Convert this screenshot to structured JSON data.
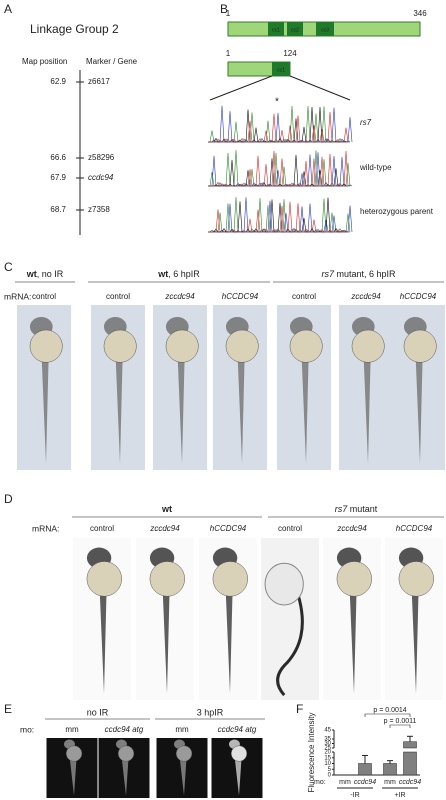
{
  "panel_a": {
    "letter": "A",
    "title": "Linkage Group 2",
    "col_headers": [
      "Map position",
      "Marker / Gene"
    ],
    "rows": [
      {
        "position": "62.9",
        "marker": "z6617",
        "color": "#d42a2a"
      },
      {
        "position": "66.6",
        "marker": "z58296",
        "color": "#d42a2a"
      },
      {
        "position": "67.9",
        "marker": "ccdc94",
        "color": "#3c4fc4",
        "italic": true
      },
      {
        "position": "68.7",
        "marker": "z7358",
        "color": "#d42a2a"
      }
    ]
  },
  "panel_b": {
    "letter": "B",
    "full_start": "1",
    "full_end": "346",
    "domains": [
      "cc1",
      "cc2",
      "cc3"
    ],
    "trunc_start": "1",
    "trunc_end": "124",
    "trunc_domain": "cc1",
    "asterisk": "*",
    "traces": [
      {
        "label": "rs7",
        "italic": true
      },
      {
        "label": "wild-type"
      },
      {
        "label": "heterozygous parent"
      }
    ]
  },
  "panel_c": {
    "letter": "C",
    "groups": [
      {
        "lead": "wt",
        "rest": ", no IR"
      },
      {
        "lead": "wt",
        "rest": ", 6 hpIR"
      },
      {
        "lead": "rs7",
        "lead_italic": true,
        "rest": " mutant, 6 hpIR"
      }
    ],
    "row_label": "mRNA:",
    "conditions": [
      "control",
      "control",
      "zccdc94",
      "hCCDC94",
      "control",
      "zccdc94",
      "hCCDC94"
    ]
  },
  "panel_d": {
    "letter": "D",
    "groups": [
      {
        "lead": "wt"
      },
      {
        "lead": "rs7",
        "lead_italic": true,
        "rest": " mutant"
      }
    ],
    "row_label": "mRNA:",
    "conditions": [
      "control",
      "zccdc94",
      "hCCDC94",
      "control",
      "zccdc94",
      "hCCDC94"
    ]
  },
  "panel_e": {
    "letter": "E",
    "groups": [
      "no IR",
      "3 hpIR"
    ],
    "row_label": "mo:",
    "conditions": [
      "mm",
      "ccdc94 atg",
      "mm",
      "ccdc94 atg"
    ]
  },
  "panel_f": {
    "type": "bar",
    "letter": "F",
    "ylabel": "Fluorescence Intensity",
    "row_label": "mo:",
    "categories": [
      "mm",
      "ccdc94",
      "mm",
      "ccdc94"
    ],
    "groups": [
      "-IR",
      "+IR"
    ],
    "values": [
      0.2,
      10,
      10,
      32
    ],
    "errors": [
      0,
      7,
      2.5,
      6
    ],
    "color": "#808080",
    "ylim_lower": [
      0,
      20
    ],
    "ylim_upper": [
      25,
      45
    ],
    "yticks": [
      0,
      5,
      10,
      15,
      20,
      25,
      30,
      35,
      45
    ],
    "annotations": [
      "p = 0.0014",
      "p = 0.0011"
    ]
  }
}
